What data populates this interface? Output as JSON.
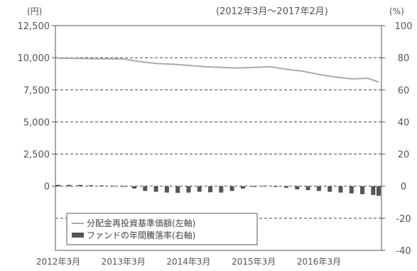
{
  "chart_data": {
    "type": "line",
    "period": "(2012年3月〜2017年2月)",
    "left_unit": "(円)",
    "right_unit": "(%)",
    "left_ticks": [
      "12,500",
      "10,000",
      "7,500",
      "5,000",
      "2,500",
      "0"
    ],
    "right_ticks": [
      "100",
      "80",
      "60",
      "40",
      "20",
      "0",
      "-20",
      "-40"
    ],
    "x_ticks": [
      "2012年3月",
      "2013年3月",
      "2014年3月",
      "2015年3月",
      "2016年3月"
    ],
    "left_axis": {
      "min": -5000,
      "max": 12500
    },
    "right_axis": {
      "min": -40,
      "max": 100
    },
    "grid": "dashed horizontal at labeled ticks",
    "legend": {
      "position": "lower-left",
      "items": [
        "分配金再投資基準価額(左軸)",
        "ファンドの年間騰落率(右軸)"
      ]
    },
    "series": [
      {
        "name": "分配金再投資基準価額(左軸)",
        "axis": "left",
        "color": "#aaaaaa",
        "x": [
          "2012-03",
          "2012-06",
          "2012-09",
          "2012-12",
          "2013-03",
          "2013-06",
          "2013-09",
          "2013-12",
          "2014-03",
          "2014-06",
          "2014-09",
          "2014-12",
          "2015-03",
          "2015-06",
          "2015-09",
          "2015-12",
          "2016-03",
          "2016-06",
          "2016-09",
          "2016-12",
          "2017-02"
        ],
        "values": [
          9950,
          9950,
          9920,
          9920,
          9900,
          9700,
          9550,
          9500,
          9400,
          9300,
          9250,
          9200,
          9250,
          9300,
          9100,
          8950,
          8700,
          8500,
          8350,
          8400,
          8100
        ]
      },
      {
        "name": "ファンドの年間騰落率(右軸)",
        "axis": "right",
        "color": "#555555",
        "x": [
          "2012-03",
          "2012-05",
          "2012-07",
          "2012-09",
          "2012-11",
          "2013-01",
          "2013-03",
          "2013-05",
          "2013-07",
          "2013-09",
          "2013-11",
          "2014-01",
          "2014-03",
          "2014-05",
          "2014-07",
          "2014-09",
          "2014-11",
          "2015-01",
          "2015-03",
          "2015-05",
          "2015-07",
          "2015-09",
          "2015-11",
          "2016-01",
          "2016-03",
          "2016-05",
          "2016-07",
          "2016-09",
          "2016-11",
          "2017-01",
          "2017-02"
        ],
        "values": [
          0.8,
          0.8,
          0.8,
          0.6,
          0.5,
          0.3,
          0.0,
          -1.5,
          -3.0,
          -3.5,
          -4.0,
          -4.2,
          -4.0,
          -3.5,
          -3.8,
          -4.0,
          -3.0,
          -1.5,
          -0.5,
          0.3,
          -0.5,
          -1.0,
          -2.0,
          -2.5,
          -3.0,
          -3.5,
          -4.0,
          -4.5,
          -5.0,
          -5.5,
          -6.0
        ]
      }
    ]
  }
}
